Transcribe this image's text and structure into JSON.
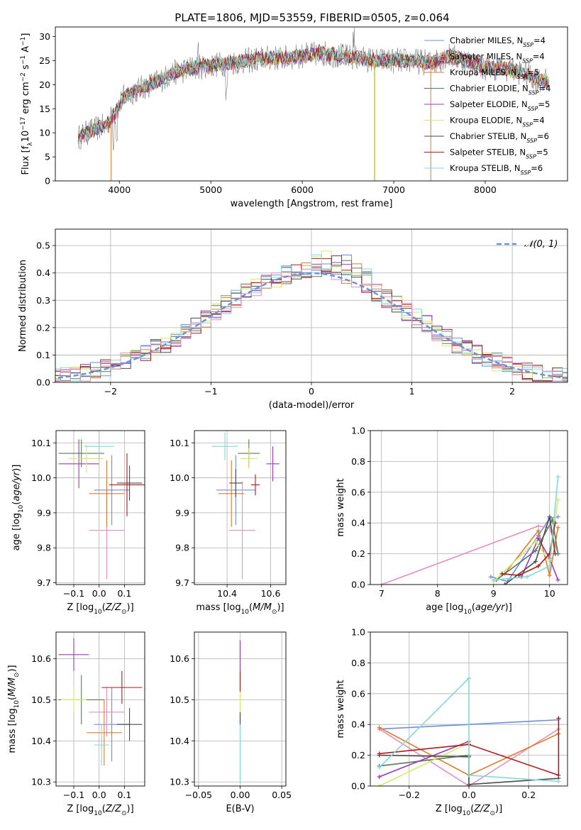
{
  "title": "PLATE=1806, MJD=53559, FIBERID=0505, z=0.064",
  "colors": {
    "c1": "#6b8fe0",
    "c2": "#e07b2a",
    "c3": "#5a7a5a",
    "c4": "#9a3bb8",
    "c5": "#d8e86a",
    "c6": "#4a4a4a",
    "c7": "#b01a1a",
    "c8": "#7fdada",
    "c9": "#e48fbf"
  },
  "chart_data": [
    {
      "id": "spectrum",
      "type": "line",
      "xlabel": "wavelength [Angstrom, rest frame]",
      "ylabel": "Flux [f",
      "xlim": [
        3300,
        8900
      ],
      "ylim": [
        0,
        32
      ],
      "xticks": [
        4000,
        5000,
        6000,
        7000,
        8000
      ],
      "yticks": [
        0,
        5,
        10,
        15,
        20,
        25,
        30
      ],
      "legend_position": "upper-right",
      "legend": [
        {
          "model": "Chabrier MILES",
          "n": "4",
          "color": "#6b8fe0"
        },
        {
          "model": "Salpeter MILES",
          "n": "4",
          "color": "#e48fbf"
        },
        {
          "model": "Kroupa MILES",
          "n": "5",
          "color": "#e07b2a"
        },
        {
          "model": "Chabrier ELODIE",
          "n": "4",
          "color": "#5a7a5a"
        },
        {
          "model": "Salpeter ELODIE",
          "n": "5",
          "color": "#9a3bb8"
        },
        {
          "model": "Kroupa ELODIE",
          "n": "4",
          "color": "#d8e86a"
        },
        {
          "model": "Chabrier STELIB",
          "n": "6",
          "color": "#4a4a4a"
        },
        {
          "model": "Salpeter STELIB",
          "n": "5",
          "color": "#b01a1a"
        },
        {
          "model": "Kroupa STELIB",
          "n": "6",
          "color": "#7fdada"
        }
      ],
      "continuum": {
        "x": [
          3550,
          3700,
          3850,
          3950,
          4050,
          4200,
          4400,
          4600,
          4800,
          5000,
          5200,
          5400,
          5600,
          5800,
          6000,
          6200,
          6400,
          6600,
          6800,
          7000,
          7200,
          7400,
          7600,
          7800,
          8000,
          8200,
          8400,
          8600,
          8700
        ],
        "y": [
          9,
          10.5,
          11.5,
          14,
          17.5,
          19,
          20.5,
          22.5,
          23.5,
          24,
          24.5,
          25,
          25.5,
          25.5,
          26,
          26.5,
          26,
          25.5,
          25,
          25,
          25,
          24.5,
          26,
          25,
          23.5,
          23.5,
          22.5,
          21,
          20.5
        ]
      }
    },
    {
      "id": "residuals",
      "type": "step",
      "xlabel": "(data-model)/error",
      "ylabel": "Normed distribution",
      "xlim": [
        -2.55,
        2.55
      ],
      "ylim": [
        0,
        0.56
      ],
      "xticks": [
        -2,
        -1,
        0,
        1,
        2
      ],
      "yticks": [
        0.0,
        0.1,
        0.2,
        0.3,
        0.4,
        0.5
      ],
      "gaussian_label": "𝒩(0, 1)",
      "bin_width": 0.1
    },
    {
      "id": "age-vs-Z",
      "type": "errorbar",
      "xlabel": "Z [log",
      "ylabel": "age  [log",
      "xlim": [
        -0.17,
        0.18
      ],
      "ylim": [
        9.695,
        10.135
      ],
      "xticks": [
        -0.1,
        0.0,
        0.1
      ],
      "yticks": [
        9.7,
        9.8,
        9.9,
        10.0,
        10.1
      ],
      "points": [
        {
          "x": 0.05,
          "y": 9.965,
          "ex": 0.07,
          "ey": 0.1,
          "color": "#6b8fe0"
        },
        {
          "x": 0.03,
          "y": 9.85,
          "ex": 0.07,
          "ey": 0.14,
          "color": "#e48fbf"
        },
        {
          "x": 0.03,
          "y": 9.955,
          "ex": 0.07,
          "ey": 0.095,
          "color": "#e07b2a"
        },
        {
          "x": -0.07,
          "y": 10.07,
          "ex": 0.09,
          "ey": 0.04,
          "color": "#5a7a5a"
        },
        {
          "x": -0.08,
          "y": 10.04,
          "ex": 0.08,
          "ey": 0.07,
          "color": "#9a3bb8"
        },
        {
          "x": -0.05,
          "y": 10.055,
          "ex": 0.07,
          "ey": 0.04,
          "color": "#d8e86a"
        },
        {
          "x": 0.12,
          "y": 9.985,
          "ex": 0.05,
          "ey": 0.05,
          "color": "#4a4a4a"
        },
        {
          "x": 0.11,
          "y": 9.98,
          "ex": 0.07,
          "ey": 0.09,
          "color": "#b01a1a"
        },
        {
          "x": 0.0,
          "y": 10.09,
          "ex": 0.06,
          "ey": 0.04,
          "color": "#7fdada"
        }
      ]
    },
    {
      "id": "age-vs-mass",
      "type": "errorbar",
      "xlabel": "mass [log",
      "ylabel": "",
      "xlim": [
        10.25,
        10.67
      ],
      "ylim": [
        9.695,
        10.135
      ],
      "xticks": [
        10.4,
        10.6
      ],
      "yticks": [
        9.7,
        9.8,
        9.9,
        10.0,
        10.1
      ],
      "points": [
        {
          "x": 10.44,
          "y": 9.965,
          "ex": 0.09,
          "ey": 0.1,
          "color": "#6b8fe0"
        },
        {
          "x": 10.47,
          "y": 9.85,
          "ex": 0.06,
          "ey": 0.14,
          "color": "#e48fbf"
        },
        {
          "x": 10.42,
          "y": 9.955,
          "ex": 0.06,
          "ey": 0.095,
          "color": "#e07b2a"
        },
        {
          "x": 10.5,
          "y": 10.07,
          "ex": 0.05,
          "ey": 0.04,
          "color": "#5a7a5a"
        },
        {
          "x": 10.61,
          "y": 10.04,
          "ex": 0.03,
          "ey": 0.05,
          "color": "#9a3bb8"
        },
        {
          "x": 10.5,
          "y": 10.055,
          "ex": 0.04,
          "ey": 0.03,
          "color": "#d8e86a"
        },
        {
          "x": 10.44,
          "y": 9.985,
          "ex": 0.03,
          "ey": 0.04,
          "color": "#4a4a4a"
        },
        {
          "x": 10.53,
          "y": 9.98,
          "ex": 0.02,
          "ey": 0.03,
          "color": "#b01a1a"
        },
        {
          "x": 10.39,
          "y": 10.09,
          "ex": 0.06,
          "ey": 0.04,
          "color": "#7fdada"
        }
      ]
    },
    {
      "id": "weight-vs-age",
      "type": "line",
      "xlabel": "age  [log",
      "ylabel": "mass weight",
      "xlim": [
        6.8,
        10.32
      ],
      "ylim": [
        0,
        1.0
      ],
      "xticks": [
        7,
        8,
        9,
        10
      ],
      "yticks": [
        0.0,
        0.2,
        0.4,
        0.6,
        0.8,
        1.0
      ],
      "series": [
        {
          "color": "#6b8fe0",
          "x": [
            8.95,
            9.25,
            9.8,
            10.0,
            10.15
          ],
          "y": [
            0.05,
            0.02,
            0.32,
            0.43,
            0.44
          ]
        },
        {
          "color": "#e48fbf",
          "x": [
            7.0,
            9.8,
            10.0,
            10.15
          ],
          "y": [
            0.0,
            0.38,
            0.37,
            0.2
          ]
        },
        {
          "color": "#e07b2a",
          "x": [
            9.2,
            9.8,
            10.0,
            10.15
          ],
          "y": [
            0.07,
            0.35,
            0.06,
            0.37
          ]
        },
        {
          "color": "#5a7a5a",
          "x": [
            9.05,
            9.75,
            10.05,
            10.15
          ],
          "y": [
            0.03,
            0.22,
            0.42,
            0.2
          ]
        },
        {
          "color": "#9a3bb8",
          "x": [
            9.5,
            9.8,
            10.0,
            10.15
          ],
          "y": [
            0.05,
            0.3,
            0.17,
            0.03
          ]
        },
        {
          "color": "#d8e86a",
          "x": [
            9.0,
            9.75,
            10.0,
            10.15
          ],
          "y": [
            0.02,
            0.28,
            0.15,
            0.55
          ]
        },
        {
          "color": "#4a4a4a",
          "x": [
            9.2,
            9.75,
            10.0,
            10.1
          ],
          "y": [
            0.0,
            0.15,
            0.44,
            0.2
          ]
        },
        {
          "color": "#b01a1a",
          "x": [
            9.15,
            9.45,
            9.8,
            10.0,
            10.1
          ],
          "y": [
            0.07,
            0.06,
            0.12,
            0.2,
            0.4
          ]
        },
        {
          "color": "#7fdada",
          "x": [
            9.0,
            9.6,
            10.0,
            10.15
          ],
          "y": [
            0.03,
            0.05,
            0.12,
            0.7
          ]
        }
      ]
    },
    {
      "id": "mass-vs-Z",
      "type": "errorbar",
      "xlabel": "Z [log",
      "ylabel": "mass [log",
      "xlim": [
        -0.17,
        0.18
      ],
      "ylim": [
        10.29,
        10.665
      ],
      "xticks": [
        -0.1,
        0.0,
        0.1
      ],
      "yticks": [
        10.3,
        10.4,
        10.5,
        10.6
      ],
      "points": [
        {
          "x": 0.05,
          "y": 10.44,
          "ex": 0.07,
          "ey": 0.09,
          "color": "#6b8fe0"
        },
        {
          "x": 0.03,
          "y": 10.47,
          "ex": 0.07,
          "ey": 0.06,
          "color": "#e48fbf"
        },
        {
          "x": 0.02,
          "y": 10.42,
          "ex": 0.07,
          "ey": 0.08,
          "color": "#e07b2a"
        },
        {
          "x": -0.07,
          "y": 10.5,
          "ex": 0.09,
          "ey": 0.06,
          "color": "#5a7a5a"
        },
        {
          "x": -0.1,
          "y": 10.61,
          "ex": 0.06,
          "ey": 0.04,
          "color": "#9a3bb8"
        },
        {
          "x": -0.1,
          "y": 10.5,
          "ex": 0.05,
          "ey": 0.03,
          "color": "#d8e86a"
        },
        {
          "x": 0.12,
          "y": 10.44,
          "ex": 0.05,
          "ey": 0.04,
          "color": "#4a4a4a"
        },
        {
          "x": 0.09,
          "y": 10.53,
          "ex": 0.08,
          "ey": 0.04,
          "color": "#b01a1a"
        },
        {
          "x": 0.01,
          "y": 10.39,
          "ex": 0.03,
          "ey": 0.05,
          "color": "#7fdada"
        }
      ]
    },
    {
      "id": "mass-vs-ebv",
      "type": "errorbar",
      "xlabel": "E(B-V)",
      "ylabel": "",
      "xlim": [
        -0.055,
        0.055
      ],
      "ylim": [
        10.29,
        10.665
      ],
      "xticks": [
        -0.05,
        0.0,
        0.05
      ],
      "yticks": [
        10.3,
        10.4,
        10.5,
        10.6
      ],
      "segments": [
        {
          "y0": 10.3,
          "y1": 10.44,
          "color": "#7fdada"
        },
        {
          "y0": 10.44,
          "y1": 10.47,
          "color": "#4a4a4a"
        },
        {
          "y0": 10.47,
          "y1": 10.52,
          "color": "#d8e86a"
        },
        {
          "y0": 10.52,
          "y1": 10.57,
          "color": "#b01a1a"
        },
        {
          "y0": 10.57,
          "y1": 10.645,
          "color": "#9a3bb8"
        }
      ]
    },
    {
      "id": "weight-vs-Z",
      "type": "line",
      "xlabel": "Z [log",
      "ylabel": "mass weight",
      "xlim": [
        -0.33,
        0.33
      ],
      "ylim": [
        0,
        1.0
      ],
      "xticks": [
        -0.2,
        0.0,
        0.2
      ],
      "yticks": [
        0.0,
        0.2,
        0.4,
        0.6,
        0.8,
        1.0
      ],
      "series": [
        {
          "color": "#6b8fe0",
          "x": [
            -0.3,
            0.3
          ],
          "y": [
            0.37,
            0.43
          ]
        },
        {
          "color": "#e48fbf",
          "x": [
            -0.3,
            0.0,
            0.3
          ],
          "y": [
            0.37,
            0.0,
            0.37
          ]
        },
        {
          "color": "#e07b2a",
          "x": [
            -0.3,
            0.0,
            0.3
          ],
          "y": [
            0.38,
            0.07,
            0.34
          ]
        },
        {
          "color": "#5a7a5a",
          "x": [
            -0.3,
            0.0
          ],
          "y": [
            0.13,
            0.2
          ]
        },
        {
          "color": "#9a3bb8",
          "x": [
            -0.3,
            0.0
          ],
          "y": [
            0.06,
            0.29
          ]
        },
        {
          "color": "#d8e86a",
          "x": [
            -0.3,
            0.0
          ],
          "y": [
            0.0,
            0.28
          ]
        },
        {
          "color": "#4a4a4a",
          "x": [
            -0.3,
            0.0,
            0.0,
            0.3
          ],
          "y": [
            0.2,
            0.19,
            0.01,
            0.05
          ]
        },
        {
          "color": "#b01a1a",
          "x": [
            -0.3,
            0.0,
            0.3,
            0.3
          ],
          "y": [
            0.21,
            0.27,
            0.07,
            0.44
          ]
        },
        {
          "color": "#7fdada",
          "x": [
            -0.3,
            0.0,
            0.0,
            0.3
          ],
          "y": [
            0.12,
            0.7,
            0.07,
            0.03
          ]
        }
      ]
    }
  ]
}
